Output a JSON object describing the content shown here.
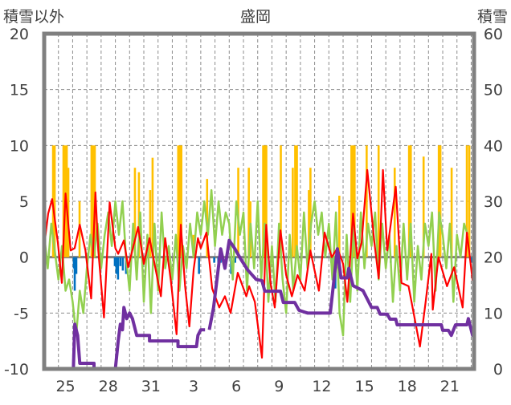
{
  "chart_data": {
    "type": "bar+line",
    "title": "盛岡",
    "ylabel_left": "積雪以外",
    "ylabel_right": "積雪",
    "ylim_left": [
      -10,
      20
    ],
    "ylim_right": [
      0,
      60
    ],
    "yticks_left": [
      "20",
      "15",
      "10",
      "5",
      "0",
      "-5",
      "-10"
    ],
    "yticks_right": [
      "60",
      "50",
      "40",
      "30",
      "20",
      "10",
      "0"
    ],
    "yticks_left_values": [
      20,
      15,
      10,
      5,
      0,
      -5,
      -10
    ],
    "yticks_right_values": [
      60,
      50,
      40,
      30,
      20,
      10,
      0
    ],
    "x_domain_days": [
      0,
      30.2
    ],
    "x_unit": "days since Jan 24",
    "xticks": [
      {
        "label": "25",
        "day": 1.5
      },
      {
        "label": "28",
        "day": 4.5
      },
      {
        "label": "31",
        "day": 7.5
      },
      {
        "label": "3",
        "day": 10.5
      },
      {
        "label": "6",
        "day": 13.5
      },
      {
        "label": "9",
        "day": 16.5
      },
      {
        "label": "12",
        "day": 19.5
      },
      {
        "label": "15",
        "day": 22.5
      },
      {
        "label": "18",
        "day": 25.5
      },
      {
        "label": "21",
        "day": 28.5
      }
    ],
    "grid": {
      "horizontal_dashed": true,
      "vertical_dashed_daily": true
    },
    "colors": {
      "positive_bars": "#FFC000",
      "negative_bars": "#0070C0",
      "red_line": "#FF0000",
      "green_line": "#92D050",
      "snow_line": "#7030A0",
      "frame": "#808080"
    },
    "positive_bars": [
      [
        0.62,
        10
      ],
      [
        0.73,
        10
      ],
      [
        1.35,
        10
      ],
      [
        1.46,
        10
      ],
      [
        1.58,
        10
      ],
      [
        1.69,
        8
      ],
      [
        2.48,
        5
      ],
      [
        3.32,
        10
      ],
      [
        3.44,
        10
      ],
      [
        3.55,
        10
      ],
      [
        6.37,
        8
      ],
      [
        6.65,
        7.6
      ],
      [
        7.44,
        6
      ],
      [
        7.61,
        8.9
      ],
      [
        9.41,
        10
      ],
      [
        9.52,
        10
      ],
      [
        9.63,
        10
      ],
      [
        10.48,
        2
      ],
      [
        11.44,
        7
      ],
      [
        13.63,
        8
      ],
      [
        14.37,
        8
      ],
      [
        14.48,
        5
      ],
      [
        15.38,
        10
      ],
      [
        15.49,
        10
      ],
      [
        15.6,
        10
      ],
      [
        16.62,
        10
      ],
      [
        17.46,
        8
      ],
      [
        17.63,
        10
      ],
      [
        17.75,
        10
      ],
      [
        18.59,
        6
      ],
      [
        18.7,
        8
      ],
      [
        20.73,
        5.5
      ],
      [
        21.58,
        10
      ],
      [
        21.69,
        10
      ],
      [
        21.8,
        10
      ],
      [
        22.65,
        10
      ],
      [
        23.49,
        10
      ],
      [
        24.62,
        8
      ],
      [
        25.63,
        10
      ],
      [
        25.75,
        10
      ],
      [
        26.65,
        9
      ],
      [
        27.72,
        10
      ],
      [
        27.83,
        10
      ],
      [
        28.62,
        8
      ],
      [
        29.69,
        10
      ],
      [
        29.86,
        10
      ]
    ],
    "negative_bars": [
      [
        2.08,
        -1
      ],
      [
        2.14,
        -3
      ],
      [
        2.25,
        -1.5
      ],
      [
        4.96,
        -0.8
      ],
      [
        5.07,
        -1.5
      ],
      [
        5.18,
        -2
      ],
      [
        5.35,
        -0.8
      ],
      [
        5.52,
        -1.2
      ],
      [
        5.75,
        -1.5
      ],
      [
        10.87,
        -1.5
      ],
      [
        11.94,
        -0.5
      ],
      [
        12.23,
        -0.5
      ],
      [
        12.39,
        -0.5
      ],
      [
        13.13,
        -1.5
      ],
      [
        13.41,
        -0.5
      ],
      [
        20.17,
        -0.5
      ],
      [
        20.45,
        -2.8
      ],
      [
        20.56,
        -1
      ],
      [
        24.34,
        -0.5
      ],
      [
        30.03,
        -0.5
      ]
    ],
    "red_series": [
      [
        0,
        1
      ],
      [
        0.28,
        3.9
      ],
      [
        0.56,
        5.2
      ],
      [
        0.96,
        1.3
      ],
      [
        1.24,
        -2.3
      ],
      [
        1.5,
        5.7
      ],
      [
        1.86,
        0.6
      ],
      [
        2.14,
        0.8
      ],
      [
        2.5,
        2.9
      ],
      [
        2.9,
        0.6
      ],
      [
        3.3,
        -3.7
      ],
      [
        3.6,
        5.8
      ],
      [
        3.8,
        0.6
      ],
      [
        4.2,
        -5.4
      ],
      [
        4.6,
        4.9
      ],
      [
        5.0,
        0.8
      ],
      [
        5.2,
        0.3
      ],
      [
        5.6,
        1.5
      ],
      [
        5.9,
        -0.9
      ],
      [
        6.6,
        2.7
      ],
      [
        7.0,
        -0.6
      ],
      [
        7.4,
        1.7
      ],
      [
        8.2,
        -3.5
      ],
      [
        8.5,
        1.7
      ],
      [
        8.9,
        -2.1
      ],
      [
        9.3,
        -6.9
      ],
      [
        9.6,
        2.9
      ],
      [
        9.9,
        -2.6
      ],
      [
        10.2,
        -6.2
      ],
      [
        10.5,
        -1.1
      ],
      [
        10.8,
        1.7
      ],
      [
        11.0,
        0.8
      ],
      [
        11.4,
        2.2
      ],
      [
        11.8,
        -2.8
      ],
      [
        12.3,
        -4.5
      ],
      [
        12.7,
        -3.5
      ],
      [
        13.1,
        -5.0
      ],
      [
        13.6,
        -1.4
      ],
      [
        14.2,
        -3.5
      ],
      [
        14.4,
        -2.6
      ],
      [
        14.8,
        -4.0
      ],
      [
        15.3,
        -9.0
      ],
      [
        15.6,
        2.9
      ],
      [
        15.9,
        -2.3
      ],
      [
        16.2,
        -4.5
      ],
      [
        16.6,
        2.4
      ],
      [
        17.0,
        -1.6
      ],
      [
        17.4,
        -3.5
      ],
      [
        17.8,
        -1.6
      ],
      [
        18.3,
        -3.0
      ],
      [
        18.7,
        0.6
      ],
      [
        19.3,
        -3.0
      ],
      [
        19.7,
        2.2
      ],
      [
        20.2,
        0
      ],
      [
        20.6,
        0.8
      ],
      [
        21.0,
        -0.6
      ],
      [
        21.3,
        -4.0
      ],
      [
        21.7,
        3.9
      ],
      [
        22.0,
        -0.1
      ],
      [
        22.3,
        1.3
      ],
      [
        22.7,
        7.8
      ],
      [
        23.2,
        1.3
      ],
      [
        23.5,
        -1.9
      ],
      [
        23.8,
        7.8
      ],
      [
        24.1,
        0.6
      ],
      [
        24.7,
        6.3
      ],
      [
        25.1,
        -2.3
      ],
      [
        25.6,
        -2.6
      ],
      [
        26.4,
        -8.0
      ],
      [
        26.8,
        -4.0
      ],
      [
        27.2,
        0.3
      ],
      [
        27.3,
        -4.7
      ],
      [
        27.7,
        0
      ],
      [
        28.3,
        -2.6
      ],
      [
        28.8,
        -0.9
      ],
      [
        29.4,
        -4.5
      ],
      [
        29.7,
        2.2
      ],
      [
        30.1,
        -2.1
      ]
    ],
    "green_series_step_days": 0.25,
    "green_series": [
      2,
      -1,
      3,
      0.5,
      -2,
      1,
      -3,
      -2,
      -4,
      -7,
      -3,
      -5,
      -1,
      2,
      0,
      3,
      -1,
      2,
      4,
      1,
      5,
      2,
      5,
      0,
      -3,
      3,
      -2,
      4,
      -4,
      2,
      -5,
      3,
      -3,
      4,
      -1,
      1,
      -2,
      2,
      -3,
      1,
      -1,
      3,
      0,
      4,
      2,
      5,
      2,
      6,
      1,
      5,
      2,
      4,
      3,
      -2,
      5,
      2,
      4,
      -3,
      3,
      -1,
      5,
      -2,
      3,
      -4,
      1,
      -4,
      3,
      -2,
      -5,
      2,
      -3,
      1,
      -2,
      4,
      -1,
      3,
      5,
      2,
      4,
      0,
      3,
      -2,
      4,
      -5,
      -7,
      2,
      -4,
      3,
      -3,
      4,
      -1,
      3,
      1,
      4,
      -2,
      3,
      -1,
      2,
      -4,
      1,
      -3,
      3,
      -2,
      3,
      -4,
      1,
      -2,
      3,
      1,
      4,
      -3,
      4,
      2,
      -1,
      3,
      -4,
      2,
      0,
      3,
      2
    ],
    "snow_depth_series": [
      [
        0,
        0
      ],
      [
        2.05,
        0
      ],
      [
        2.15,
        8
      ],
      [
        2.35,
        6
      ],
      [
        2.5,
        1
      ],
      [
        3.5,
        1
      ],
      [
        3.5,
        0
      ],
      [
        5.0,
        0
      ],
      [
        5.2,
        5
      ],
      [
        5.35,
        8
      ],
      [
        5.5,
        7
      ],
      [
        5.6,
        11
      ],
      [
        5.8,
        9
      ],
      [
        6.0,
        10
      ],
      [
        6.2,
        9
      ],
      [
        6.5,
        6
      ],
      [
        7.4,
        6
      ],
      [
        7.4,
        5
      ],
      [
        9.4,
        5
      ],
      [
        9.4,
        4
      ],
      [
        10.7,
        4
      ],
      [
        10.8,
        6
      ],
      [
        11.0,
        7
      ],
      [
        11.3,
        7
      ],
      null,
      [
        11.6,
        7
      ],
      [
        11.9,
        11
      ],
      [
        12.4,
        21.5
      ],
      [
        12.7,
        18
      ],
      [
        13.0,
        23
      ],
      [
        13.4,
        21.5
      ],
      [
        13.8,
        19.7
      ],
      [
        14.3,
        17.7
      ],
      [
        14.9,
        16
      ],
      [
        15.3,
        15.8
      ],
      [
        15.5,
        13.9
      ],
      [
        16.6,
        13.9
      ],
      [
        16.8,
        11.9
      ],
      [
        17.6,
        11.9
      ],
      [
        17.9,
        10.5
      ],
      [
        18.5,
        10
      ],
      [
        20.1,
        10
      ],
      [
        20.6,
        21.5
      ],
      [
        20.85,
        16.3
      ],
      [
        21.3,
        16.3
      ],
      [
        21.4,
        18
      ],
      [
        21.7,
        14.9
      ],
      [
        22.4,
        14
      ],
      [
        23.0,
        11
      ],
      [
        23.4,
        11
      ],
      [
        23.6,
        9.8
      ],
      [
        24.1,
        9.8
      ],
      [
        24.3,
        8.9
      ],
      [
        24.7,
        8.9
      ],
      [
        24.8,
        7.9
      ],
      [
        27.9,
        7.9
      ],
      [
        28.0,
        6.9
      ],
      [
        28.4,
        6.9
      ],
      [
        28.6,
        6
      ],
      [
        28.9,
        7.9
      ],
      [
        29.7,
        7.9
      ],
      [
        29.8,
        9
      ],
      [
        30.1,
        6
      ],
      [
        30.2,
        8
      ]
    ]
  }
}
